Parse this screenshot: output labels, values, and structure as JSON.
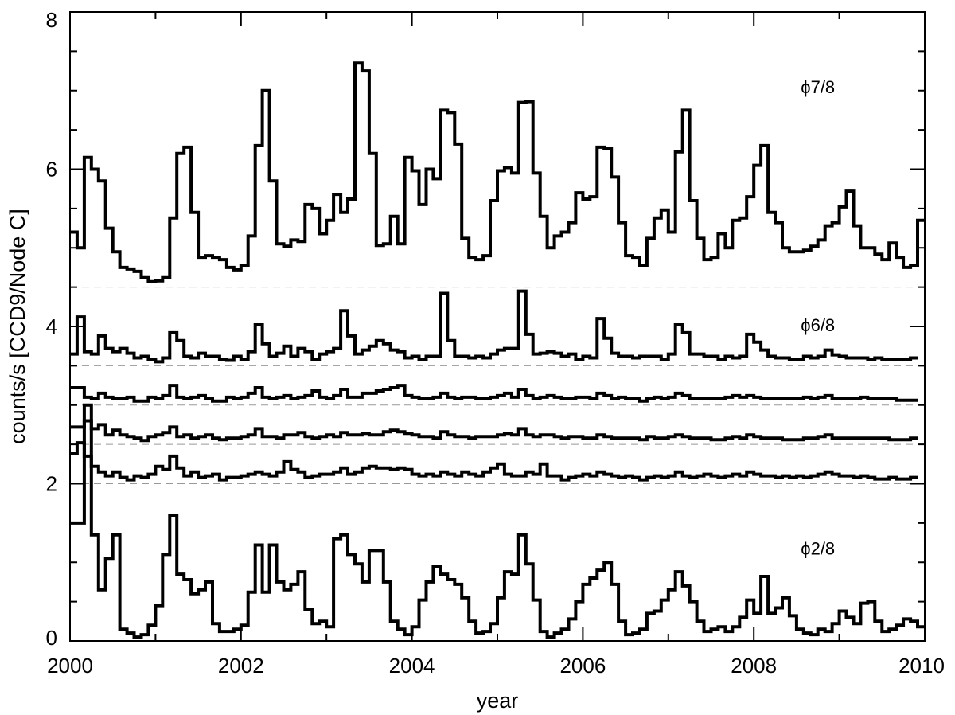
{
  "chart_data": {
    "type": "line",
    "step": true,
    "xlabel": "year",
    "ylabel": "counts/s [CCD9/Node C]",
    "xlim": [
      2000,
      2010
    ],
    "ylim": [
      0,
      8
    ],
    "xticks": [
      2000,
      2002,
      2004,
      2006,
      2008,
      2010
    ],
    "xtick_labels": [
      "2000",
      "2002",
      "2004",
      "2006",
      "2008",
      "2010"
    ],
    "yticks": [
      0,
      2,
      4,
      6,
      8
    ],
    "ytick_labels": [
      "0",
      "2",
      "4",
      "6",
      "8"
    ],
    "grid": false,
    "reference_lines": [
      {
        "y": 4.5,
        "style": "dashed",
        "color": "#999999"
      },
      {
        "y": 3.5,
        "style": "dashed",
        "color": "#999999"
      },
      {
        "y": 3.0,
        "style": "dashed",
        "color": "#999999"
      },
      {
        "y": 2.5,
        "style": "dashed",
        "color": "#999999"
      },
      {
        "y": 2.0,
        "style": "dashed",
        "color": "#999999"
      }
    ],
    "annotations": [
      {
        "text": "ϕ7/8",
        "x": 2008.55,
        "y": 7.05
      },
      {
        "text": "ϕ6/8",
        "x": 2008.55,
        "y": 4.02
      },
      {
        "text": "ϕ2/8",
        "x": 2008.55,
        "y": 1.18
      }
    ],
    "line_color": "#000000",
    "series": [
      {
        "x0": 2000.0,
        "dx": 0.0833333,
        "values": [
          5.2,
          5.0,
          6.15,
          6.0,
          5.85,
          5.25,
          4.95,
          4.75,
          4.73,
          4.7,
          4.62,
          4.57,
          4.58,
          4.62,
          5.38,
          6.2,
          6.28,
          5.45,
          4.88,
          4.9,
          4.88,
          4.85,
          4.75,
          4.72,
          4.78,
          5.15,
          6.3,
          7.0,
          5.85,
          5.05,
          5.02,
          5.1,
          5.08,
          5.55,
          5.5,
          5.18,
          5.35,
          5.68,
          5.45,
          5.62,
          7.35,
          7.25,
          6.2,
          5.03,
          5.05,
          5.4,
          5.05,
          6.15,
          5.98,
          5.55,
          6.0,
          5.88,
          6.75,
          6.72,
          6.32,
          5.12,
          4.88,
          4.85,
          4.9,
          5.6,
          5.98,
          6.02,
          5.95,
          6.85,
          6.86,
          5.95,
          5.4,
          5.0,
          5.15,
          5.2,
          5.32,
          5.7,
          5.62,
          5.65,
          6.28,
          6.26,
          5.9,
          5.32,
          4.9,
          4.88,
          4.78,
          5.12,
          5.38,
          5.48,
          5.2,
          6.22,
          6.75,
          5.6,
          5.12,
          4.85,
          4.88,
          5.18,
          5.0,
          5.35,
          5.38,
          5.65,
          6.05,
          6.3,
          5.45,
          5.32,
          5.0,
          4.95,
          4.95,
          4.97,
          5.02,
          5.1,
          5.28,
          5.32,
          5.52,
          5.72,
          5.28,
          5.0,
          5.0,
          4.92,
          4.85,
          5.06,
          4.88,
          4.75,
          4.78,
          5.35
        ]
      },
      {
        "x0": 2000.0,
        "dx": 0.0833333,
        "values": [
          3.65,
          4.12,
          3.68,
          3.65,
          3.88,
          3.72,
          3.68,
          3.72,
          3.66,
          3.6,
          3.62,
          3.58,
          3.55,
          3.6,
          3.92,
          3.82,
          3.62,
          3.6,
          3.66,
          3.62,
          3.62,
          3.58,
          3.57,
          3.62,
          3.58,
          3.68,
          4.02,
          3.78,
          3.62,
          3.66,
          3.75,
          3.62,
          3.72,
          3.68,
          3.58,
          3.65,
          3.68,
          3.72,
          4.2,
          3.88,
          3.65,
          3.7,
          3.75,
          3.82,
          3.78,
          3.7,
          3.68,
          3.6,
          3.62,
          3.58,
          3.62,
          3.62,
          4.42,
          3.82,
          3.62,
          3.62,
          3.6,
          3.62,
          3.6,
          3.65,
          3.7,
          3.72,
          3.72,
          4.45,
          3.9,
          3.65,
          3.66,
          3.68,
          3.66,
          3.62,
          3.65,
          3.58,
          3.62,
          3.6,
          4.1,
          3.85,
          3.66,
          3.62,
          3.62,
          3.6,
          3.62,
          3.62,
          3.62,
          3.58,
          3.65,
          4.02,
          3.92,
          3.65,
          3.65,
          3.62,
          3.62,
          3.58,
          3.62,
          3.6,
          3.62,
          3.9,
          3.8,
          3.7,
          3.62,
          3.6,
          3.6,
          3.58,
          3.58,
          3.62,
          3.6,
          3.62,
          3.7,
          3.64,
          3.62,
          3.6,
          3.6,
          3.6,
          3.58,
          3.6,
          3.58,
          3.58,
          3.58,
          3.58,
          3.6
        ]
      },
      {
        "x0": 2000.0,
        "dx": 0.0833333,
        "values": [
          3.22,
          3.22,
          3.1,
          3.08,
          3.15,
          3.1,
          3.08,
          3.08,
          3.1,
          3.05,
          3.05,
          3.1,
          3.08,
          3.12,
          3.25,
          3.1,
          3.08,
          3.1,
          3.12,
          3.08,
          3.05,
          3.05,
          3.1,
          3.08,
          3.1,
          3.15,
          3.22,
          3.1,
          3.08,
          3.1,
          3.12,
          3.08,
          3.1,
          3.12,
          3.18,
          3.1,
          3.08,
          3.12,
          3.2,
          3.1,
          3.1,
          3.15,
          3.15,
          3.18,
          3.2,
          3.22,
          3.25,
          3.12,
          3.1,
          3.08,
          3.08,
          3.1,
          3.15,
          3.1,
          3.08,
          3.1,
          3.1,
          3.08,
          3.08,
          3.1,
          3.12,
          3.15,
          3.1,
          3.2,
          3.12,
          3.08,
          3.1,
          3.12,
          3.1,
          3.08,
          3.08,
          3.1,
          3.1,
          3.08,
          3.15,
          3.12,
          3.08,
          3.1,
          3.08,
          3.08,
          3.05,
          3.08,
          3.1,
          3.08,
          3.1,
          3.15,
          3.12,
          3.08,
          3.08,
          3.08,
          3.08,
          3.08,
          3.1,
          3.12,
          3.1,
          3.12,
          3.1,
          3.08,
          3.08,
          3.08,
          3.08,
          3.08,
          3.08,
          3.1,
          3.08,
          3.1,
          3.12,
          3.08,
          3.08,
          3.08,
          3.08,
          3.1,
          3.08,
          3.08,
          3.08,
          3.08,
          3.06,
          3.06,
          3.06
        ]
      },
      {
        "x0": 2000.0,
        "dx": 0.0833333,
        "values": [
          2.72,
          2.72,
          2.8,
          2.7,
          2.75,
          2.62,
          2.68,
          2.62,
          2.6,
          2.58,
          2.55,
          2.6,
          2.62,
          2.65,
          2.72,
          2.6,
          2.62,
          2.58,
          2.6,
          2.62,
          2.58,
          2.56,
          2.58,
          2.58,
          2.6,
          2.62,
          2.7,
          2.6,
          2.6,
          2.58,
          2.62,
          2.62,
          2.65,
          2.6,
          2.58,
          2.6,
          2.62,
          2.6,
          2.65,
          2.62,
          2.62,
          2.64,
          2.62,
          2.62,
          2.66,
          2.68,
          2.66,
          2.64,
          2.62,
          2.6,
          2.6,
          2.58,
          2.66,
          2.62,
          2.6,
          2.6,
          2.58,
          2.6,
          2.6,
          2.6,
          2.62,
          2.64,
          2.62,
          2.7,
          2.62,
          2.6,
          2.62,
          2.62,
          2.6,
          2.58,
          2.6,
          2.6,
          2.58,
          2.58,
          2.62,
          2.6,
          2.58,
          2.58,
          2.58,
          2.58,
          2.56,
          2.6,
          2.58,
          2.58,
          2.6,
          2.62,
          2.6,
          2.58,
          2.58,
          2.58,
          2.56,
          2.56,
          2.58,
          2.6,
          2.58,
          2.62,
          2.6,
          2.58,
          2.58,
          2.58,
          2.56,
          2.56,
          2.56,
          2.58,
          2.58,
          2.6,
          2.62,
          2.58,
          2.58,
          2.58,
          2.58,
          2.58,
          2.58,
          2.58,
          2.58,
          2.56,
          2.56,
          2.56,
          2.58
        ]
      },
      {
        "x0": 2000.0,
        "dx": 0.0833333,
        "values": [
          2.38,
          2.52,
          2.35,
          2.22,
          2.15,
          2.1,
          2.15,
          2.08,
          2.05,
          2.1,
          2.08,
          2.12,
          2.22,
          2.18,
          2.35,
          2.2,
          2.1,
          2.15,
          2.08,
          2.1,
          2.12,
          2.05,
          2.08,
          2.08,
          2.1,
          2.12,
          2.15,
          2.12,
          2.1,
          2.15,
          2.28,
          2.18,
          2.15,
          2.08,
          2.1,
          2.12,
          2.12,
          2.15,
          2.2,
          2.12,
          2.15,
          2.2,
          2.22,
          2.2,
          2.2,
          2.18,
          2.2,
          2.18,
          2.12,
          2.1,
          2.12,
          2.1,
          2.15,
          2.12,
          2.1,
          2.15,
          2.12,
          2.1,
          2.15,
          2.2,
          2.25,
          2.12,
          2.1,
          2.1,
          2.15,
          2.12,
          2.25,
          2.1,
          2.1,
          2.05,
          2.08,
          2.1,
          2.12,
          2.1,
          2.15,
          2.12,
          2.1,
          2.08,
          2.1,
          2.08,
          2.05,
          2.08,
          2.1,
          2.08,
          2.1,
          2.15,
          2.1,
          2.08,
          2.1,
          2.12,
          2.1,
          2.08,
          2.1,
          2.12,
          2.1,
          2.15,
          2.12,
          2.1,
          2.1,
          2.08,
          2.1,
          2.08,
          2.1,
          2.08,
          2.1,
          2.12,
          2.15,
          2.12,
          2.1,
          2.1,
          2.08,
          2.1,
          2.08,
          2.06,
          2.06,
          2.08,
          2.06,
          2.06,
          2.08
        ]
      },
      {
        "x0": 2000.0,
        "dx": 0.0833333,
        "values": [
          1.5,
          1.5,
          3.0,
          1.35,
          0.65,
          1.05,
          1.35,
          0.15,
          0.1,
          0.05,
          0.08,
          0.2,
          0.45,
          1.1,
          1.6,
          0.85,
          0.78,
          0.6,
          0.65,
          0.75,
          0.22,
          0.12,
          0.12,
          0.15,
          0.2,
          0.62,
          1.22,
          0.62,
          1.22,
          0.75,
          0.65,
          0.72,
          0.88,
          0.4,
          0.22,
          0.25,
          0.18,
          1.3,
          1.35,
          1.1,
          0.98,
          0.75,
          1.15,
          1.15,
          0.75,
          0.25,
          0.15,
          0.08,
          0.18,
          0.52,
          0.75,
          0.95,
          0.85,
          0.78,
          0.72,
          0.55,
          0.25,
          0.1,
          0.12,
          0.22,
          0.55,
          0.88,
          0.85,
          1.35,
          0.98,
          0.52,
          0.12,
          0.05,
          0.1,
          0.15,
          0.28,
          0.5,
          0.72,
          0.8,
          0.9,
          1.0,
          0.72,
          0.25,
          0.08,
          0.1,
          0.15,
          0.35,
          0.38,
          0.52,
          0.65,
          0.88,
          0.7,
          0.5,
          0.25,
          0.12,
          0.15,
          0.18,
          0.12,
          0.18,
          0.3,
          0.52,
          0.35,
          0.82,
          0.35,
          0.42,
          0.55,
          0.32,
          0.15,
          0.1,
          0.08,
          0.15,
          0.12,
          0.22,
          0.38,
          0.3,
          0.22,
          0.48,
          0.5,
          0.25,
          0.12,
          0.15,
          0.2,
          0.28,
          0.25,
          0.18
        ]
      }
    ]
  }
}
